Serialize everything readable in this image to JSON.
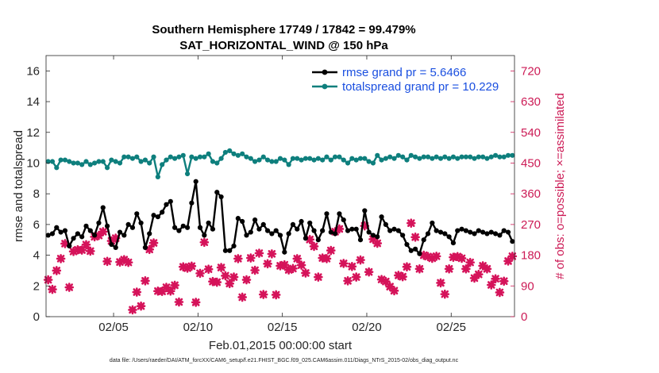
{
  "chart_data": {
    "type": "line",
    "title": "Southern Hemisphere 17749 / 17842 = 99.479%",
    "subtitle": "SAT_HORIZONTAL_WIND @ 150 hPa",
    "xlabel": "Feb.01,2015 00:00:00 start",
    "ylabel": "rmse and totalspread",
    "ylabel_right": "# of obs: o=possible; ×=assimilated",
    "xlim": [
      1,
      28.75
    ],
    "ylim": [
      0,
      17
    ],
    "ylim_right": [
      0,
      765
    ],
    "x_ticks": [
      5,
      10,
      15,
      20,
      25
    ],
    "x_tick_labels": [
      "02/05",
      "02/10",
      "02/15",
      "02/20",
      "02/25"
    ],
    "y_ticks": [
      0,
      2,
      4,
      6,
      8,
      10,
      12,
      14,
      16
    ],
    "y_tick_labels": [
      "0",
      "2",
      "4",
      "6",
      "8",
      "10",
      "12",
      "14",
      "16"
    ],
    "y_right_ticks": [
      0,
      90,
      180,
      270,
      360,
      450,
      540,
      630,
      720
    ],
    "y_right_tick_labels": [
      "0",
      "90",
      "180",
      "270",
      "360",
      "450",
      "540",
      "630",
      "720"
    ],
    "colors": {
      "rmse": "#000000",
      "spread": "#0e7f7d",
      "obs": "#d5135a",
      "right_axis": "#cc1a55",
      "legend_text": "#1a4fe0"
    },
    "footnote": "data file: /Users/raeder/DAI/ATM_forcXX/CAM6_setup/f.e21.FHIST_BGC.f09_025.CAM6assim.011/Diags_NTrS_2015-02/obs_diag_output.nc",
    "legend": [
      {
        "label": "rmse grand pr = 5.6466",
        "series": "rmse"
      },
      {
        "label": "totalspread grand pr = 10.229",
        "series": "spread"
      }
    ],
    "series": [
      {
        "name": "rmse",
        "x": [
          1.125,
          1.375,
          1.625,
          1.875,
          2.125,
          2.375,
          2.625,
          2.875,
          3.125,
          3.375,
          3.625,
          3.875,
          4.125,
          4.375,
          4.625,
          4.875,
          5.125,
          5.375,
          5.625,
          5.875,
          6.125,
          6.375,
          6.625,
          6.875,
          7.125,
          7.375,
          7.625,
          7.875,
          8.125,
          8.375,
          8.625,
          8.875,
          9.125,
          9.375,
          9.625,
          9.875,
          10.125,
          10.375,
          10.625,
          10.875,
          11.125,
          11.375,
          11.625,
          11.875,
          12.125,
          12.375,
          12.625,
          12.875,
          13.125,
          13.375,
          13.625,
          13.875,
          14.125,
          14.375,
          14.625,
          14.875,
          15.125,
          15.375,
          15.625,
          15.875,
          16.125,
          16.375,
          16.625,
          16.875,
          17.125,
          17.375,
          17.625,
          17.875,
          18.125,
          18.375,
          18.625,
          18.875,
          19.125,
          19.375,
          19.625,
          19.875,
          20.125,
          20.375,
          20.625,
          20.875,
          21.125,
          21.375,
          21.625,
          21.875,
          22.125,
          22.375,
          22.625,
          22.875,
          23.125,
          23.375,
          23.625,
          23.875,
          24.125,
          24.375,
          24.625,
          24.875,
          25.125,
          25.375,
          25.625,
          25.875,
          26.125,
          26.375,
          26.625,
          26.875,
          27.125,
          27.375,
          27.625,
          27.875,
          28.125,
          28.375,
          28.625
        ],
        "values": [
          5.3,
          5.4,
          5.8,
          5.5,
          5.6,
          4.6,
          5.1,
          5.4,
          5.2,
          5.9,
          5.6,
          5.3,
          6.1,
          7.1,
          5.9,
          4.7,
          4.5,
          5.5,
          5.3,
          6.0,
          5.8,
          6.7,
          6.1,
          4.5,
          5.4,
          6.6,
          6.5,
          6.8,
          7.3,
          7.5,
          5.8,
          5.6,
          5.9,
          5.8,
          7.4,
          8.8,
          5.8,
          5.3,
          6.1,
          5.7,
          8.1,
          7.8,
          4.3,
          4.3,
          4.6,
          6.4,
          6.2,
          5.3,
          5.5,
          6.3,
          5.7,
          6.0,
          5.6,
          5.4,
          5.6,
          5.3,
          4.2,
          5.4,
          6.0,
          5.7,
          6.2,
          5.1,
          6.1,
          5.6,
          5.0,
          5.6,
          6.7,
          5.5,
          5.4,
          6.7,
          6.3,
          5.6,
          5.7,
          5.7,
          5.0,
          6.9,
          5.5,
          5.3,
          5.2,
          6.5,
          6.0,
          5.6,
          5.7,
          5.6,
          5.3,
          4.7,
          4.3,
          4.4,
          4.1,
          5.0,
          5.4,
          6.1,
          5.6,
          5.5,
          5.4,
          5.2,
          4.8,
          5.6,
          5.7,
          5.6,
          5.5,
          5.4,
          5.6,
          5.5,
          5.4,
          5.5,
          5.4,
          5.3,
          5.6,
          5.5,
          4.9
        ]
      },
      {
        "name": "totalspread",
        "x": [
          1.125,
          1.375,
          1.625,
          1.875,
          2.125,
          2.375,
          2.625,
          2.875,
          3.125,
          3.375,
          3.625,
          3.875,
          4.125,
          4.375,
          4.625,
          4.875,
          5.125,
          5.375,
          5.625,
          5.875,
          6.125,
          6.375,
          6.625,
          6.875,
          7.125,
          7.375,
          7.625,
          7.875,
          8.125,
          8.375,
          8.625,
          8.875,
          9.125,
          9.375,
          9.625,
          9.875,
          10.125,
          10.375,
          10.625,
          10.875,
          11.125,
          11.375,
          11.625,
          11.875,
          12.125,
          12.375,
          12.625,
          12.875,
          13.125,
          13.375,
          13.625,
          13.875,
          14.125,
          14.375,
          14.625,
          14.875,
          15.125,
          15.375,
          15.625,
          15.875,
          16.125,
          16.375,
          16.625,
          16.875,
          17.125,
          17.375,
          17.625,
          17.875,
          18.125,
          18.375,
          18.625,
          18.875,
          19.125,
          19.375,
          19.625,
          19.875,
          20.125,
          20.375,
          20.625,
          20.875,
          21.125,
          21.375,
          21.625,
          21.875,
          22.125,
          22.375,
          22.625,
          22.875,
          23.125,
          23.375,
          23.625,
          23.875,
          24.125,
          24.375,
          24.625,
          24.875,
          25.125,
          25.375,
          25.625,
          25.875,
          26.125,
          26.375,
          26.625,
          26.875,
          27.125,
          27.375,
          27.625,
          27.875,
          28.125,
          28.375,
          28.625
        ],
        "values": [
          10.1,
          10.1,
          9.7,
          10.2,
          10.2,
          10.1,
          10.0,
          10.0,
          9.9,
          10.1,
          9.9,
          10.0,
          10.1,
          10.1,
          9.7,
          10.2,
          10.1,
          10.0,
          10.4,
          10.4,
          10.3,
          10.4,
          10.1,
          10.2,
          10.0,
          10.4,
          9.1,
          9.9,
          10.2,
          10.4,
          10.3,
          10.4,
          10.5,
          9.3,
          10.4,
          10.3,
          10.4,
          10.4,
          10.6,
          10.1,
          10.0,
          10.3,
          10.7,
          10.8,
          10.6,
          10.5,
          10.6,
          10.4,
          10.3,
          10.1,
          10.2,
          10.4,
          10.2,
          10.1,
          10.1,
          10.3,
          10.2,
          9.9,
          10.3,
          10.3,
          10.2,
          10.3,
          10.3,
          10.2,
          10.3,
          10.2,
          10.4,
          10.2,
          10.4,
          10.4,
          10.2,
          10.0,
          10.3,
          10.2,
          10.3,
          10.3,
          10.1,
          10.0,
          10.5,
          10.2,
          10.3,
          10.4,
          10.3,
          10.5,
          10.4,
          10.2,
          10.5,
          10.4,
          10.3,
          10.4,
          10.4,
          10.3,
          10.4,
          10.3,
          10.4,
          10.3,
          10.4,
          10.3,
          10.4,
          10.4,
          10.4,
          10.3,
          10.4,
          10.4,
          10.3,
          10.4,
          10.5,
          10.4,
          10.4,
          10.5,
          10.5
        ]
      },
      {
        "name": "obs_assimilated",
        "x": [
          1.125,
          1.375,
          1.625,
          1.875,
          2.125,
          2.375,
          2.625,
          2.875,
          3.125,
          3.375,
          3.625,
          3.875,
          4.125,
          4.375,
          4.625,
          4.875,
          5.125,
          5.375,
          5.625,
          5.875,
          6.125,
          6.375,
          6.625,
          6.875,
          7.125,
          7.375,
          7.625,
          7.875,
          8.125,
          8.375,
          8.625,
          8.875,
          9.125,
          9.375,
          9.625,
          9.875,
          10.125,
          10.375,
          10.625,
          10.875,
          11.125,
          11.375,
          11.625,
          11.875,
          12.125,
          12.375,
          12.625,
          12.875,
          13.125,
          13.375,
          13.625,
          13.875,
          14.125,
          14.375,
          14.625,
          14.875,
          15.125,
          15.375,
          15.625,
          15.875,
          16.125,
          16.375,
          16.625,
          16.875,
          17.125,
          17.375,
          17.625,
          17.875,
          18.125,
          18.375,
          18.625,
          18.875,
          19.125,
          19.375,
          19.625,
          19.875,
          20.125,
          20.375,
          20.625,
          20.875,
          21.125,
          21.375,
          21.625,
          21.875,
          22.125,
          22.375,
          22.625,
          22.875,
          23.125,
          23.375,
          23.625,
          23.875,
          24.125,
          24.375,
          24.625,
          24.875,
          25.125,
          25.375,
          25.625,
          25.875,
          26.125,
          26.375,
          26.625,
          26.875,
          27.125,
          27.375,
          27.625,
          27.875,
          28.125,
          28.375,
          28.625
        ],
        "values": [
          108,
          80,
          135,
          170,
          214,
          86,
          191,
          196,
          195,
          211,
          192,
          234,
          238,
          249,
          162,
          222,
          230,
          160,
          167,
          159,
          20,
          72,
          31,
          105,
          197,
          216,
          75,
          74,
          86,
          75,
          92,
          43,
          146,
          142,
          148,
          42,
          127,
          218,
          139,
          103,
          101,
          144,
          120,
          97,
          116,
          170,
          57,
          108,
          172,
          136,
          186,
          65,
          155,
          184,
          64,
          149,
          152,
          137,
          141,
          170,
          151,
          128,
          226,
          206,
          116,
          172,
          170,
          194,
          249,
          257,
          156,
          105,
          147,
          116,
          166,
          266,
          131,
          227,
          215,
          109,
          103,
          88,
          76,
          121,
          117,
          146,
          274,
          233,
          140,
          180,
          176,
          171,
          177,
          99,
          66,
          140,
          174,
          176,
          171,
          140,
          159,
          113,
          124,
          149,
          140,
          93,
          111,
          71,
          104,
          163,
          177
        ]
      }
    ]
  }
}
